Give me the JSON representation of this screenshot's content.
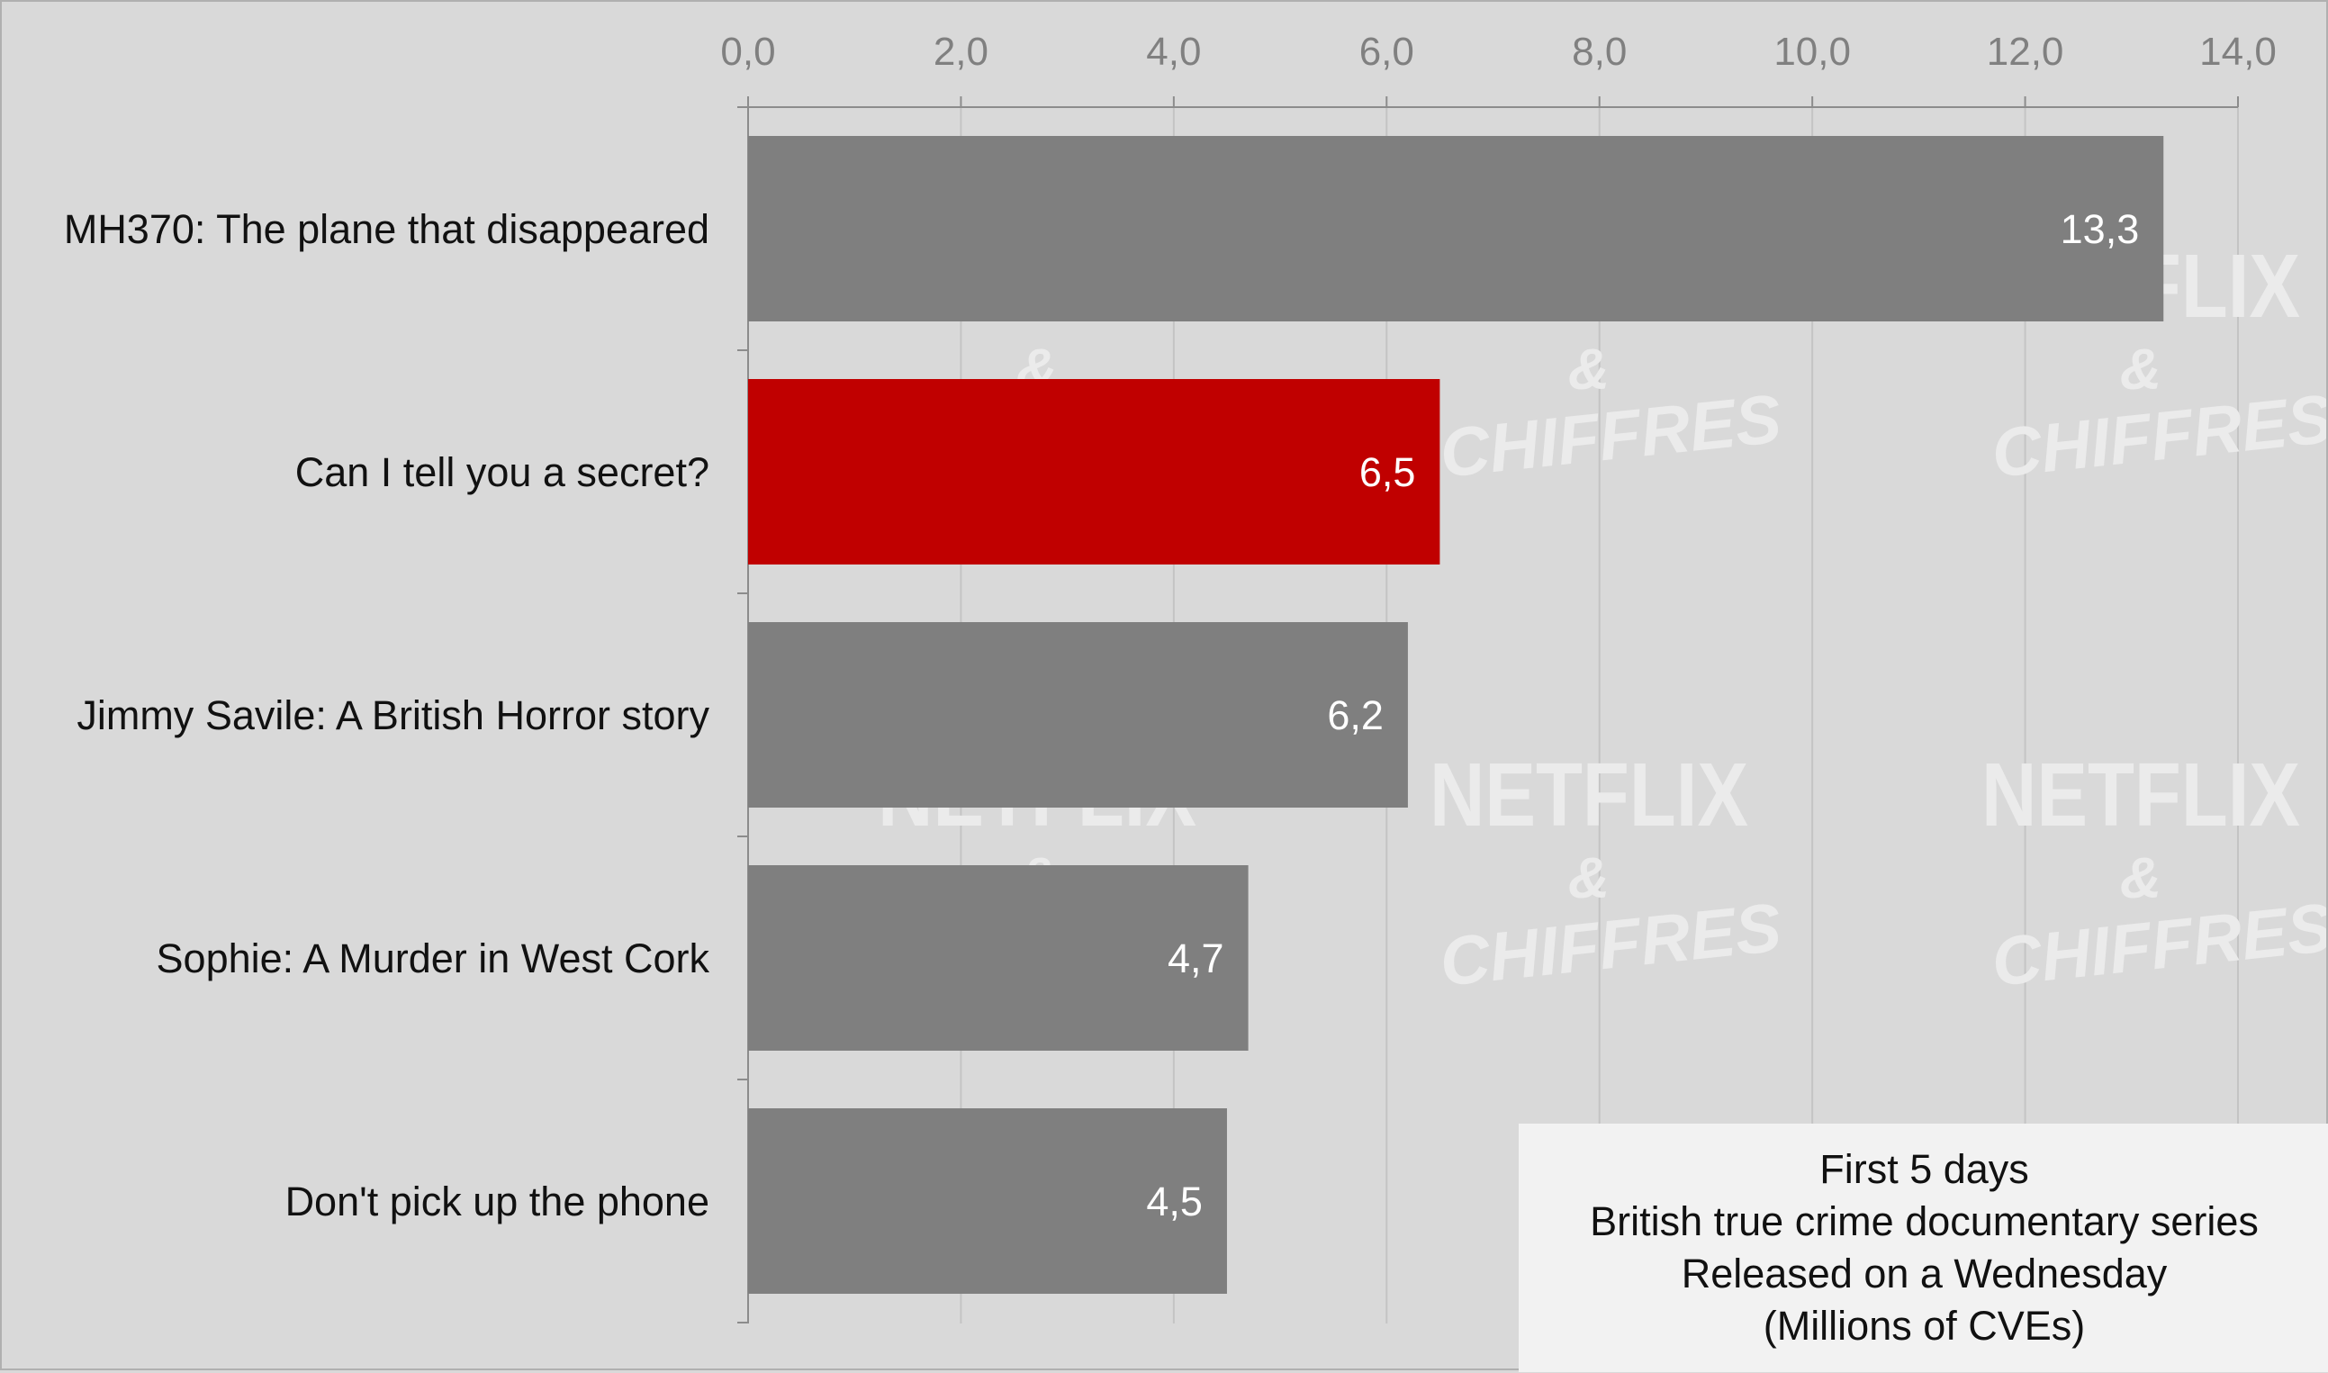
{
  "chart_data": {
    "type": "bar",
    "orientation": "horizontal",
    "categories": [
      "MH370: The plane that disappeared",
      "Can I tell you a secret?",
      "Jimmy Savile: A British Horror story",
      "Sophie: A Murder in West Cork",
      "Don't pick up the phone"
    ],
    "values": [
      13.3,
      6.5,
      6.2,
      4.7,
      4.5
    ],
    "value_labels": [
      "13,3",
      "6,5",
      "6,2",
      "4,7",
      "4,5"
    ],
    "highlight_index": 1,
    "xlim": [
      0,
      14
    ],
    "ticks": [
      0,
      2,
      4,
      6,
      8,
      10,
      12,
      14
    ],
    "tick_labels": [
      "0,0",
      "2,0",
      "4,0",
      "6,0",
      "8,0",
      "10,0",
      "12,0",
      "14,0"
    ],
    "x_axis_position": "top",
    "grid": true,
    "title": "",
    "xlabel": "",
    "ylabel": "",
    "annotation_lines": [
      "First 5 days",
      "British true crime documentary series",
      "Released on a Wednesday",
      "(Millions of CVEs)"
    ],
    "annotation_placement": "bottom-right"
  },
  "watermark": {
    "line1": "NETFLIX",
    "line2": "&",
    "line3": "CHIFFRES"
  },
  "colors": {
    "background": "#d9d9d9",
    "bar": "#7f7f7f",
    "highlight_bar": "#c00000",
    "gridline": "#c4c4c4",
    "axis": "#8c8c8c",
    "tick_text": "#808080",
    "category_text": "#111111",
    "data_label_text": "#ffffff",
    "watermark": "#ebebeb",
    "annotation_background": "#f2f2f2"
  }
}
